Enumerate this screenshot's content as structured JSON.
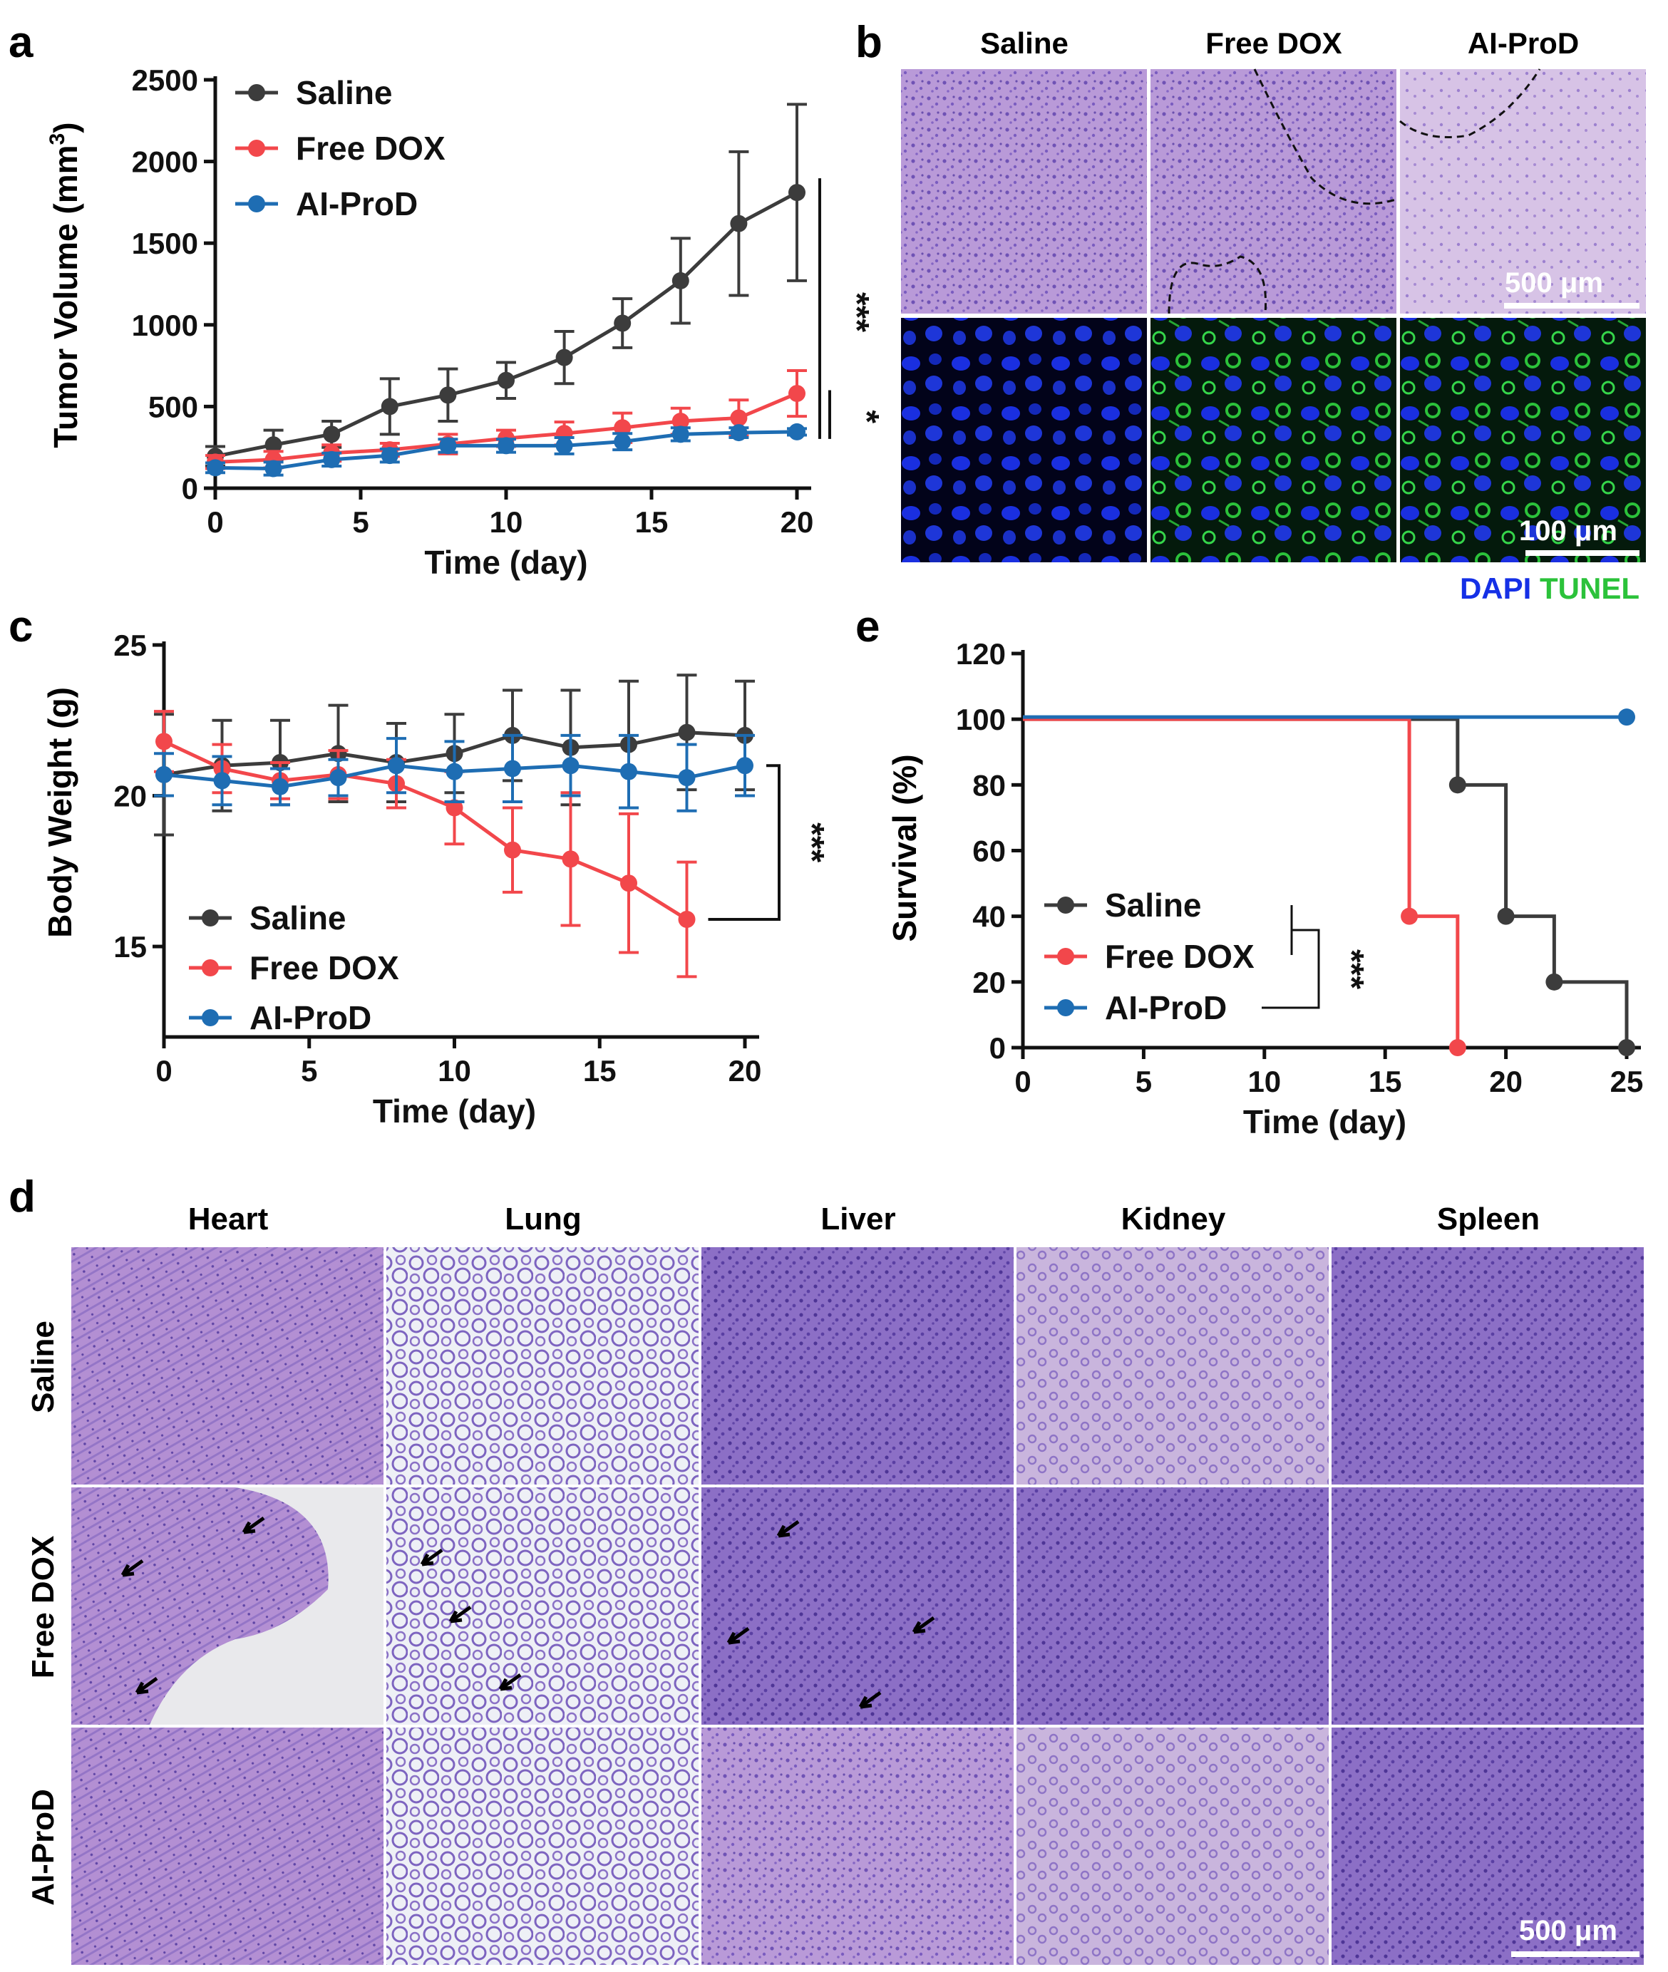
{
  "panel_letters": {
    "a": "a",
    "b": "b",
    "c": "c",
    "d": "d",
    "e": "e"
  },
  "colors": {
    "saline": "#3c3c3c",
    "dox": "#f2474b",
    "aiprod": "#1e6db3",
    "he_purple": "#8c6fc6",
    "he_pink": "#c8a8de",
    "dapi": "#1530e6",
    "tunel": "#2bc23a"
  },
  "chart_data": [
    {
      "id": "a",
      "type": "line",
      "title": "",
      "xlabel": "Time (day)",
      "ylabel": "Tumor Volume (mm",
      "ylabel_sup": "3",
      "ylabel_close": ")",
      "xlim": [
        0,
        20
      ],
      "ylim": [
        0,
        2500
      ],
      "xticks": [
        0,
        5,
        10,
        15,
        20
      ],
      "yticks": [
        0,
        500,
        1000,
        1500,
        2000,
        2500
      ],
      "legend_position": "top-left",
      "x": [
        0,
        2,
        4,
        6,
        8,
        10,
        12,
        14,
        16,
        18,
        20
      ],
      "series": [
        {
          "name": "Saline",
          "color_key": "saline",
          "values": [
            195,
            265,
            330,
            500,
            570,
            660,
            800,
            1010,
            1270,
            1620,
            1810
          ],
          "errors": [
            60,
            90,
            80,
            170,
            160,
            110,
            160,
            150,
            260,
            440,
            540
          ]
        },
        {
          "name": "Free DOX",
          "color_key": "dox",
          "values": [
            160,
            175,
            215,
            235,
            270,
            305,
            335,
            370,
            410,
            430,
            580
          ],
          "errors": [
            40,
            50,
            50,
            40,
            60,
            50,
            70,
            90,
            80,
            110,
            140
          ]
        },
        {
          "name": "AI-ProD",
          "color_key": "aiprod",
          "values": [
            125,
            120,
            175,
            200,
            260,
            260,
            260,
            285,
            330,
            340,
            345
          ],
          "errors": [
            30,
            40,
            40,
            40,
            40,
            40,
            50,
            50,
            40,
            30,
            20
          ]
        }
      ],
      "significance": [
        {
          "label": "***",
          "from": 0,
          "to": 2
        },
        {
          "label": "*",
          "from": 1,
          "to": 2
        }
      ]
    },
    {
      "id": "c",
      "type": "line",
      "title": "",
      "xlabel": "Time (day)",
      "ylabel": "Body Weight (g)",
      "xlim": [
        0,
        20
      ],
      "ylim": [
        12,
        25
      ],
      "xticks": [
        0,
        5,
        10,
        15,
        20
      ],
      "yticks": [
        15,
        20,
        25
      ],
      "legend_position": "bottom-left",
      "x": [
        0,
        2,
        4,
        6,
        8,
        10,
        12,
        14,
        16,
        18,
        20
      ],
      "series": [
        {
          "name": "Saline",
          "color_key": "saline",
          "values": [
            20.7,
            21.0,
            21.1,
            21.4,
            21.1,
            21.4,
            22.0,
            21.6,
            21.7,
            22.1,
            22.0
          ],
          "errors": [
            2.0,
            1.5,
            1.4,
            1.6,
            1.3,
            1.3,
            1.5,
            1.9,
            2.1,
            1.9,
            1.8
          ]
        },
        {
          "name": "Free DOX",
          "color_key": "dox",
          "values": [
            21.8,
            20.9,
            20.5,
            20.7,
            20.4,
            19.6,
            18.2,
            17.9,
            17.1,
            15.9,
            null
          ],
          "errors": [
            1.0,
            0.8,
            0.6,
            0.8,
            0.8,
            1.2,
            1.4,
            2.2,
            2.3,
            1.9,
            null
          ]
        },
        {
          "name": "AI-ProD",
          "color_key": "aiprod",
          "values": [
            20.7,
            20.5,
            20.3,
            20.6,
            21.0,
            20.8,
            20.9,
            21.0,
            20.8,
            20.6,
            21.0
          ],
          "errors": [
            0.7,
            0.8,
            0.6,
            0.6,
            0.9,
            1.0,
            1.1,
            1.0,
            1.2,
            1.1,
            1.0
          ]
        }
      ],
      "significance": [
        {
          "label": "***",
          "from": 2,
          "to": 1
        }
      ]
    },
    {
      "id": "e",
      "type": "line",
      "title": "",
      "xlabel": "Time (day)",
      "ylabel": "Survival (%)",
      "xlim": [
        0,
        25
      ],
      "ylim": [
        0,
        120
      ],
      "xticks": [
        0,
        5,
        10,
        15,
        20,
        25
      ],
      "yticks": [
        0,
        20,
        40,
        60,
        80,
        100,
        120
      ],
      "legend_position": "bottom-left",
      "series": [
        {
          "name": "Saline",
          "color_key": "saline",
          "step_x": [
            0,
            18,
            20,
            22,
            25
          ],
          "step_y": [
            100,
            80,
            40,
            20,
            0
          ]
        },
        {
          "name": "Free DOX",
          "color_key": "dox",
          "step_x": [
            0,
            16,
            18
          ],
          "step_y": [
            100,
            40,
            0
          ]
        },
        {
          "name": "AI-ProD",
          "color_key": "aiprod",
          "step_x": [
            0,
            25
          ],
          "step_y": [
            100,
            100
          ]
        }
      ],
      "significance": [
        {
          "label": "***"
        }
      ]
    }
  ],
  "panel_b": {
    "columns": [
      "Saline",
      "Free DOX",
      "AI-ProD"
    ],
    "scale_top": "500 μm",
    "scale_bottom": "100 μm",
    "stain_dapi": "DAPI",
    "stain_tunel": "TUNEL"
  },
  "panel_d": {
    "columns": [
      "Heart",
      "Lung",
      "Liver",
      "Kidney",
      "Spleen"
    ],
    "rows": [
      "Saline",
      "Free DOX",
      "AI-ProD"
    ],
    "scale": "500 μm"
  }
}
